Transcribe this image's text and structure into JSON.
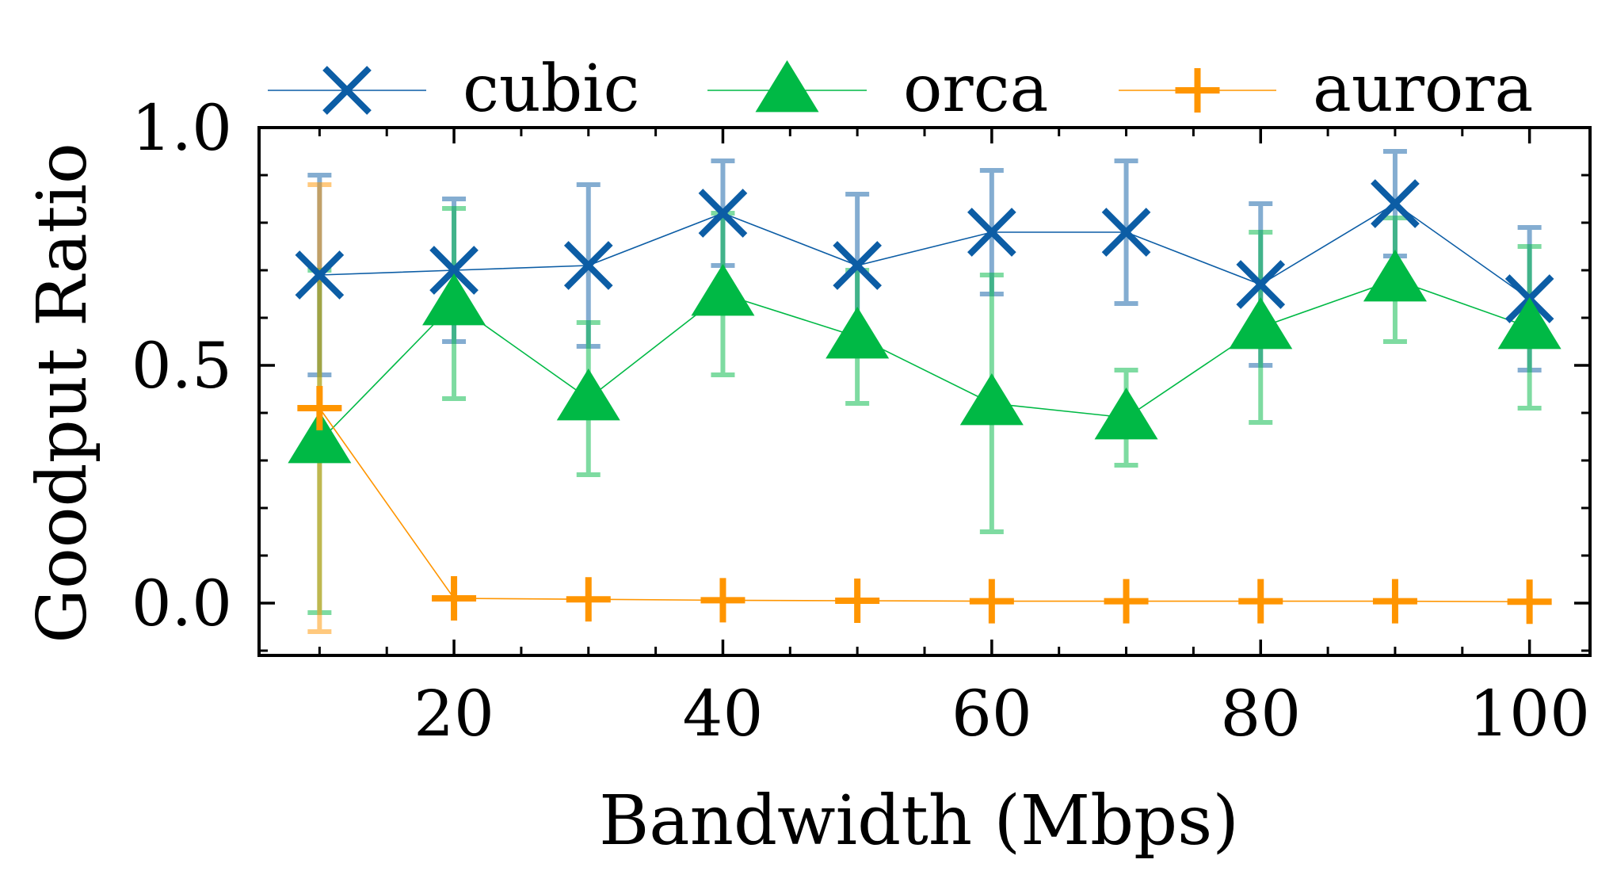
{
  "chart_data": {
    "type": "line",
    "title": "",
    "xlabel": "Bandwidth (Mbps)",
    "ylabel": "Goodput Ratio",
    "x": [
      10,
      20,
      30,
      40,
      50,
      60,
      70,
      80,
      90,
      100
    ],
    "xlim": [
      5.5,
      104.5
    ],
    "ylim": [
      -0.11,
      1.0
    ],
    "xticks": [
      20,
      40,
      60,
      80,
      100
    ],
    "xtick_labels": [
      "20",
      "40",
      "60",
      "80",
      "100"
    ],
    "yticks": [
      0.0,
      0.5,
      1.0
    ],
    "ytick_labels": [
      "0.0",
      "0.5",
      "1.0"
    ],
    "grid": false,
    "legend": "top, above plot, 3 columns",
    "series": [
      {
        "name": "cubic",
        "color": "#0C5DA5",
        "marker": "x",
        "values": [
          0.69,
          0.7,
          0.71,
          0.82,
          0.71,
          0.78,
          0.78,
          0.67,
          0.84,
          0.64
        ],
        "error": [
          0.21,
          0.15,
          0.17,
          0.11,
          0.15,
          0.13,
          0.15,
          0.17,
          0.11,
          0.15
        ]
      },
      {
        "name": "orca",
        "color": "#00B945",
        "marker": "triangle",
        "values": [
          0.34,
          0.63,
          0.43,
          0.65,
          0.56,
          0.42,
          0.39,
          0.58,
          0.68,
          0.58
        ],
        "error": [
          0.36,
          0.2,
          0.16,
          0.17,
          0.14,
          0.27,
          0.1,
          0.2,
          0.13,
          0.17
        ]
      },
      {
        "name": "aurora",
        "color": "#FF9500",
        "marker": "plus",
        "values": [
          0.41,
          0.01,
          0.008,
          0.006,
          0.005,
          0.004,
          0.004,
          0.004,
          0.004,
          0.003
        ],
        "error": [
          0.47,
          0.0,
          0.0,
          0.0,
          0.0,
          0.0,
          0.0,
          0.0,
          0.0,
          0.0
        ]
      }
    ]
  }
}
